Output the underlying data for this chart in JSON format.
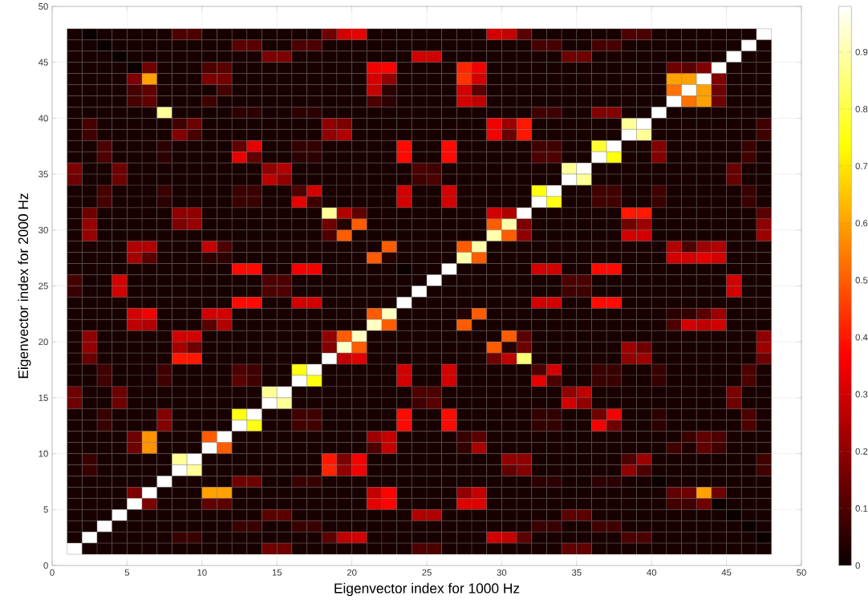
{
  "chart_data": {
    "type": "heatmap",
    "xlabel": "Eigenvector index for 1000 Hz",
    "ylabel": "Eigenvector index for 2000 Hz",
    "x": [
      1.5,
      2.5,
      3.5,
      4.5,
      5.5,
      6.5,
      7.5,
      8.5,
      9.5,
      10.5,
      11.5,
      12.5,
      13.5,
      14.5,
      15.5,
      16.5,
      17.5,
      18.5,
      19.5,
      20.5,
      21.5,
      22.5,
      23.5,
      24.5,
      25.5,
      26.5,
      27.5,
      28.5,
      29.5,
      30.5,
      31.5,
      32.5,
      33.5,
      34.5,
      35.5,
      36.5,
      37.5,
      38.5,
      39.5,
      40.5,
      41.5,
      42.5,
      43.5,
      44.5,
      45.5,
      46.5,
      47.5
    ],
    "y": [
      47.5,
      46.5,
      45.5,
      44.5,
      43.5,
      42.5,
      41.5,
      40.5,
      39.5,
      38.5,
      37.5,
      36.5,
      35.5,
      34.5,
      33.5,
      32.5,
      31.5,
      30.5,
      29.5,
      28.5,
      27.5,
      26.5,
      25.5,
      24.5,
      23.5,
      22.5,
      21.5,
      20.5,
      19.5,
      18.5,
      17.5,
      16.5,
      15.5,
      14.5,
      13.5,
      12.5,
      11.5,
      10.5,
      9.5,
      8.5,
      7.5,
      6.5,
      5.5,
      4.5,
      3.5,
      2.5,
      1.5
    ],
    "cells": [
      [
        0.02,
        0,
        0.02,
        0.02,
        0.02,
        0.02,
        0.02,
        0.1,
        0.1,
        0.02,
        0.02,
        0.02,
        0.02,
        0.02,
        0.02,
        0.02,
        0.02,
        0.15,
        0.3,
        0.33,
        0.02,
        0.02,
        0.02,
        0.02,
        0.02,
        0.02,
        0.02,
        0.02,
        0.3,
        0.28,
        0.12,
        0.02,
        0.02,
        0.02,
        0.02,
        0.02,
        0.02,
        0.1,
        0.1,
        0.02,
        0.02,
        0.02,
        0.02,
        0.02,
        0.02,
        0.02,
        0.98
      ],
      [
        0.02,
        0.02,
        0,
        0.02,
        0.02,
        0.02,
        0.02,
        0.02,
        0.02,
        0.02,
        0.02,
        0.12,
        0.12,
        0.02,
        0.02,
        0.1,
        0.1,
        0.02,
        0.02,
        0.02,
        0.02,
        0.02,
        0.02,
        0.02,
        0.02,
        0.02,
        0.02,
        0.02,
        0.02,
        0.02,
        0.02,
        0.09,
        0.09,
        0.02,
        0.02,
        0.09,
        0.09,
        0.02,
        0.02,
        0.02,
        0.02,
        0.02,
        0.02,
        0.02,
        0.02,
        0.98,
        0.02
      ],
      [
        0.02,
        0.02,
        0.02,
        0,
        0.02,
        0.02,
        0.02,
        0.02,
        0.02,
        0.02,
        0.02,
        0.02,
        0.02,
        0.17,
        0.17,
        0.02,
        0.02,
        0.02,
        0.02,
        0.02,
        0.02,
        0.02,
        0.02,
        0.3,
        0.3,
        0.02,
        0.02,
        0.02,
        0.02,
        0.02,
        0.02,
        0.02,
        0.02,
        0.15,
        0.15,
        0.02,
        0.02,
        0.02,
        0.02,
        0.02,
        0.02,
        0.02,
        0.02,
        0.02,
        0.98,
        0.02,
        0.02
      ],
      [
        0.02,
        0.02,
        0.02,
        0.02,
        0,
        0.15,
        0.02,
        0.02,
        0.02,
        0.1,
        0.12,
        0.02,
        0.02,
        0.02,
        0.02,
        0.02,
        0.02,
        0.02,
        0.02,
        0.02,
        0.35,
        0.37,
        0.02,
        0.02,
        0.02,
        0.02,
        0.42,
        0.35,
        0.02,
        0.02,
        0.02,
        0.02,
        0.02,
        0.02,
        0.02,
        0.02,
        0.02,
        0.02,
        0.02,
        0.02,
        0.15,
        0.12,
        0.18,
        0.98,
        0.02,
        0.02,
        0.02
      ],
      [
        0.02,
        0.02,
        0.02,
        0.02,
        0.17,
        0.6,
        0.02,
        0.02,
        0.02,
        0.17,
        0.16,
        0.02,
        0.02,
        0.02,
        0.02,
        0.02,
        0.02,
        0.02,
        0.02,
        0.02,
        0.3,
        0.2,
        0.02,
        0.02,
        0.02,
        0.02,
        0.44,
        0.3,
        0.02,
        0.02,
        0.02,
        0.02,
        0.02,
        0.02,
        0.02,
        0.02,
        0.02,
        0.02,
        0.02,
        0.02,
        0.6,
        0.6,
        0.98,
        0.18,
        0.02,
        0.02,
        0.02
      ],
      [
        0.02,
        0.02,
        0.02,
        0.02,
        0.09,
        0.13,
        0.02,
        0.02,
        0.02,
        0.02,
        0.09,
        0.02,
        0.02,
        0.02,
        0.02,
        0.02,
        0.02,
        0.02,
        0.02,
        0.02,
        0.28,
        0.05,
        0.02,
        0.02,
        0.02,
        0.02,
        0.3,
        0.12,
        0.02,
        0.02,
        0.02,
        0.02,
        0.02,
        0.02,
        0.02,
        0.02,
        0.02,
        0.02,
        0.02,
        0.02,
        0.53,
        0.98,
        0.6,
        0.15,
        0.02,
        0.02,
        0.02
      ],
      [
        0.02,
        0.02,
        0.02,
        0.02,
        0.09,
        0.13,
        0.02,
        0.02,
        0.02,
        0.08,
        0.02,
        0.02,
        0.02,
        0.02,
        0.02,
        0.02,
        0.02,
        0.02,
        0.02,
        0.02,
        0.1,
        0.05,
        0.02,
        0.02,
        0.02,
        0.02,
        0.3,
        0.27,
        0.02,
        0.02,
        0.02,
        0.02,
        0.02,
        0.02,
        0.02,
        0.02,
        0.02,
        0.02,
        0.02,
        0.02,
        0.98,
        0.53,
        0.6,
        0.15,
        0.02,
        0.02,
        0.02
      ],
      [
        0.02,
        0.02,
        0.02,
        0.02,
        0.02,
        0.02,
        0.88,
        0.02,
        0.02,
        0.02,
        0.02,
        0.05,
        0.05,
        0.02,
        0.02,
        0.05,
        0.05,
        0.02,
        0.02,
        0.02,
        0.02,
        0.02,
        0.02,
        0.02,
        0.02,
        0.02,
        0.02,
        0.02,
        0.02,
        0.02,
        0.02,
        0.08,
        0.08,
        0.02,
        0.02,
        0.18,
        0.18,
        0.02,
        0.02,
        0.98,
        0.02,
        0.02,
        0.02,
        0.02,
        0.02,
        0.02,
        0.02
      ],
      [
        0.02,
        0.09,
        0.02,
        0.02,
        0.02,
        0.02,
        0.02,
        0.08,
        0.15,
        0.02,
        0.02,
        0.02,
        0.02,
        0.02,
        0.02,
        0.02,
        0.02,
        0.2,
        0.17,
        0.02,
        0.02,
        0.02,
        0.02,
        0.02,
        0.02,
        0.02,
        0.02,
        0.02,
        0.35,
        0.22,
        0.4,
        0.02,
        0.02,
        0.02,
        0.02,
        0.02,
        0.02,
        0.88,
        0.98,
        0.02,
        0.02,
        0.02,
        0.02,
        0.02,
        0.02,
        0.02,
        0.08
      ],
      [
        0.02,
        0.08,
        0.02,
        0.02,
        0.02,
        0.02,
        0.02,
        0.18,
        0.09,
        0.02,
        0.02,
        0.02,
        0.02,
        0.02,
        0.02,
        0.02,
        0.02,
        0.2,
        0.25,
        0.02,
        0.02,
        0.02,
        0.02,
        0.02,
        0.02,
        0.02,
        0.02,
        0.02,
        0.35,
        0.14,
        0.4,
        0.02,
        0.02,
        0.02,
        0.02,
        0.02,
        0.02,
        0.98,
        0.88,
        0.02,
        0.02,
        0.02,
        0.02,
        0.02,
        0.02,
        0.02,
        0.08
      ],
      [
        0.02,
        0.02,
        0.1,
        0.02,
        0.02,
        0.02,
        0.05,
        0.02,
        0.02,
        0.02,
        0.02,
        0.13,
        0.33,
        0.02,
        0.02,
        0.06,
        0.06,
        0.02,
        0.02,
        0.02,
        0.02,
        0.02,
        0.38,
        0.02,
        0.02,
        0.38,
        0.02,
        0.02,
        0.02,
        0.02,
        0.02,
        0.08,
        0.08,
        0.02,
        0.02,
        0.78,
        0.98,
        0.02,
        0.02,
        0.18,
        0.02,
        0.02,
        0.02,
        0.02,
        0.02,
        0.07,
        0.02
      ],
      [
        0.02,
        0.02,
        0.1,
        0.02,
        0.02,
        0.02,
        0.05,
        0.02,
        0.02,
        0.02,
        0.02,
        0.33,
        0.13,
        0.02,
        0.02,
        0.05,
        0.05,
        0.02,
        0.02,
        0.02,
        0.02,
        0.02,
        0.38,
        0.02,
        0.02,
        0.38,
        0.02,
        0.02,
        0.02,
        0.02,
        0.02,
        0.1,
        0.1,
        0.02,
        0.02,
        0.98,
        0.75,
        0.02,
        0.02,
        0.18,
        0.02,
        0.02,
        0.02,
        0.02,
        0.02,
        0.08,
        0.02
      ],
      [
        0.17,
        0.02,
        0.02,
        0.15,
        0.02,
        0.02,
        0.02,
        0.02,
        0.02,
        0.02,
        0.02,
        0.02,
        0.02,
        0.2,
        0.25,
        0.02,
        0.02,
        0.02,
        0.02,
        0.02,
        0.02,
        0.02,
        0.02,
        0.1,
        0.08,
        0.02,
        0.02,
        0.02,
        0.02,
        0.02,
        0.02,
        0.02,
        0.02,
        0.88,
        0.98,
        0.02,
        0.02,
        0.02,
        0.02,
        0.02,
        0.02,
        0.02,
        0.02,
        0.02,
        0.14,
        0.02,
        0.02
      ],
      [
        0.15,
        0.02,
        0.02,
        0.15,
        0.02,
        0.02,
        0.02,
        0.02,
        0.02,
        0.02,
        0.02,
        0.02,
        0.02,
        0.27,
        0.2,
        0.02,
        0.02,
        0.02,
        0.02,
        0.02,
        0.02,
        0.02,
        0.02,
        0.08,
        0.1,
        0.02,
        0.02,
        0.02,
        0.02,
        0.02,
        0.02,
        0.02,
        0.02,
        0.98,
        0.88,
        0.02,
        0.02,
        0.02,
        0.02,
        0.02,
        0.02,
        0.02,
        0.02,
        0.02,
        0.14,
        0.02,
        0.02
      ],
      [
        0.02,
        0.02,
        0.09,
        0.02,
        0.02,
        0.02,
        0.07,
        0.02,
        0.02,
        0.02,
        0.02,
        0.07,
        0.07,
        0.02,
        0.02,
        0.1,
        0.3,
        0.02,
        0.02,
        0.02,
        0.02,
        0.02,
        0.3,
        0.02,
        0.02,
        0.3,
        0.02,
        0.02,
        0.02,
        0.02,
        0.02,
        0.75,
        0.98,
        0.02,
        0.02,
        0.08,
        0.08,
        0.02,
        0.02,
        0.08,
        0.02,
        0.02,
        0.02,
        0.02,
        0.02,
        0.07,
        0.02
      ],
      [
        0.02,
        0.02,
        0.09,
        0.02,
        0.02,
        0.02,
        0.05,
        0.02,
        0.02,
        0.02,
        0.02,
        0.07,
        0.07,
        0.02,
        0.02,
        0.33,
        0.08,
        0.02,
        0.02,
        0.02,
        0.02,
        0.02,
        0.3,
        0.02,
        0.02,
        0.3,
        0.02,
        0.02,
        0.02,
        0.02,
        0.02,
        0.98,
        0.75,
        0.02,
        0.02,
        0.08,
        0.08,
        0.02,
        0.02,
        0.07,
        0.02,
        0.02,
        0.02,
        0.02,
        0.02,
        0.07,
        0.02
      ],
      [
        0.02,
        0.15,
        0.02,
        0.02,
        0.02,
        0.02,
        0.02,
        0.2,
        0.2,
        0.02,
        0.02,
        0.02,
        0.02,
        0.02,
        0.02,
        0.02,
        0.02,
        0.88,
        0.25,
        0.13,
        0.02,
        0.02,
        0.02,
        0.02,
        0.02,
        0.02,
        0.02,
        0.02,
        0.3,
        0.25,
        0.98,
        0.02,
        0.02,
        0.02,
        0.02,
        0.02,
        0.02,
        0.4,
        0.4,
        0.02,
        0.02,
        0.02,
        0.02,
        0.02,
        0.02,
        0.02,
        0.12
      ],
      [
        0.02,
        0.21,
        0.02,
        0.02,
        0.02,
        0.02,
        0.02,
        0.17,
        0.21,
        0.02,
        0.02,
        0.02,
        0.02,
        0.02,
        0.02,
        0.02,
        0.02,
        0.15,
        0.04,
        0.5,
        0.02,
        0.02,
        0.02,
        0.02,
        0.02,
        0.02,
        0.02,
        0.02,
        0.5,
        0.9,
        0.17,
        0.02,
        0.02,
        0.02,
        0.02,
        0.02,
        0.02,
        0.15,
        0.22,
        0.02,
        0.02,
        0.02,
        0.02,
        0.02,
        0.02,
        0.02,
        0.2
      ],
      [
        0.02,
        0.21,
        0.02,
        0.02,
        0.02,
        0.02,
        0.02,
        0.02,
        0.02,
        0.02,
        0.02,
        0.02,
        0.02,
        0.02,
        0.02,
        0.02,
        0.02,
        0.1,
        0.5,
        0.02,
        0.02,
        0.02,
        0.02,
        0.02,
        0.02,
        0.02,
        0.02,
        0.02,
        0.9,
        0.5,
        0.2,
        0.02,
        0.02,
        0.02,
        0.02,
        0.02,
        0.02,
        0.3,
        0.3,
        0.02,
        0.02,
        0.02,
        0.02,
        0.02,
        0.02,
        0.02,
        0.22
      ],
      [
        0.02,
        0.02,
        0.02,
        0.02,
        0.25,
        0.25,
        0.02,
        0.02,
        0.02,
        0.28,
        0.1,
        0.02,
        0.02,
        0.02,
        0.02,
        0.02,
        0.02,
        0.02,
        0.02,
        0.02,
        0.02,
        0.5,
        0.02,
        0.02,
        0.02,
        0.02,
        0.5,
        0.9,
        0.02,
        0.02,
        0.02,
        0.02,
        0.02,
        0.02,
        0.02,
        0.02,
        0.02,
        0.02,
        0.02,
        0.02,
        0.25,
        0.1,
        0.22,
        0.25,
        0.02,
        0.02,
        0.02
      ],
      [
        0.02,
        0.02,
        0.02,
        0.02,
        0.23,
        0.12,
        0.02,
        0.02,
        0.02,
        0.05,
        0.05,
        0.02,
        0.02,
        0.02,
        0.02,
        0.02,
        0.02,
        0.02,
        0.02,
        0.02,
        0.5,
        0.04,
        0.02,
        0.02,
        0.02,
        0.02,
        0.9,
        0.5,
        0.02,
        0.02,
        0.02,
        0.02,
        0.02,
        0.02,
        0.02,
        0.02,
        0.02,
        0.02,
        0.02,
        0.02,
        0.3,
        0.3,
        0.33,
        0.3,
        0.02,
        0.02,
        0.02
      ],
      [
        0.02,
        0.02,
        0.02,
        0.02,
        0.02,
        0.02,
        0.02,
        0.02,
        0.02,
        0.02,
        0.02,
        0.38,
        0.38,
        0.02,
        0.02,
        0.35,
        0.35,
        0.02,
        0.02,
        0.02,
        0.02,
        0.02,
        0,
        0.02,
        0.02,
        0.98,
        0.02,
        0.02,
        0.02,
        0.02,
        0.02,
        0.3,
        0.3,
        0.02,
        0.02,
        0.38,
        0.38,
        0.02,
        0.02,
        0.02,
        0.02,
        0.02,
        0.02,
        0.02,
        0.02,
        0.02,
        0.02
      ],
      [
        0.09,
        0.02,
        0.02,
        0.3,
        0.02,
        0.02,
        0.02,
        0.02,
        0.02,
        0.02,
        0.02,
        0.02,
        0.02,
        0.1,
        0.1,
        0.02,
        0.02,
        0.02,
        0.02,
        0.02,
        0.02,
        0.02,
        0.02,
        0.02,
        0.98,
        0.02,
        0.02,
        0.02,
        0.02,
        0.02,
        0.02,
        0.02,
        0.02,
        0.1,
        0.1,
        0.02,
        0.02,
        0.02,
        0.02,
        0.02,
        0.02,
        0.02,
        0.02,
        0.02,
        0.3,
        0.02,
        0.02
      ],
      [
        0.07,
        0.02,
        0.02,
        0.3,
        0.02,
        0.02,
        0.02,
        0.02,
        0.02,
        0.02,
        0.02,
        0.02,
        0.02,
        0.1,
        0.1,
        0.02,
        0.02,
        0.02,
        0.02,
        0.02,
        0.02,
        0.02,
        0.02,
        0.98,
        0.02,
        0.02,
        0.02,
        0.02,
        0.02,
        0.02,
        0.02,
        0.02,
        0.02,
        0.08,
        0.08,
        0.02,
        0.02,
        0.02,
        0.02,
        0.02,
        0.02,
        0.02,
        0.02,
        0.02,
        0.3,
        0.02,
        0.02
      ],
      [
        0.02,
        0.02,
        0.02,
        0.02,
        0.02,
        0.02,
        0.02,
        0.02,
        0.02,
        0.02,
        0.02,
        0.38,
        0.38,
        0.02,
        0.02,
        0.3,
        0.3,
        0.02,
        0.02,
        0.02,
        0.02,
        0.02,
        0.98,
        0.02,
        0.02,
        0.02,
        0.02,
        0.02,
        0.02,
        0.02,
        0.02,
        0.3,
        0.3,
        0.02,
        0.02,
        0.38,
        0.38,
        0.02,
        0.02,
        0.02,
        0.02,
        0.02,
        0.02,
        0.02,
        0.02,
        0.02,
        0.02
      ],
      [
        0.02,
        0.02,
        0.02,
        0.02,
        0.3,
        0.35,
        0.02,
        0.02,
        0.02,
        0.3,
        0.3,
        0.02,
        0.02,
        0.02,
        0.02,
        0.02,
        0.02,
        0.02,
        0.02,
        0.02,
        0.5,
        0.92,
        0.02,
        0.02,
        0.02,
        0.02,
        0.04,
        0.5,
        0.02,
        0.02,
        0.02,
        0.02,
        0.02,
        0.02,
        0.02,
        0.02,
        0.02,
        0.02,
        0.02,
        0.02,
        0.05,
        0.06,
        0.12,
        0.22,
        0.02,
        0.02,
        0.02
      ],
      [
        0.02,
        0.02,
        0.02,
        0.02,
        0.27,
        0.25,
        0.02,
        0.02,
        0.02,
        0.12,
        0.25,
        0.02,
        0.02,
        0.02,
        0.02,
        0.02,
        0.02,
        0.02,
        0.02,
        0.02,
        0.92,
        0.5,
        0.02,
        0.02,
        0.02,
        0.02,
        0.5,
        0.02,
        0.02,
        0.02,
        0.02,
        0.02,
        0.02,
        0.02,
        0.02,
        0.02,
        0.02,
        0.02,
        0.02,
        0.02,
        0.1,
        0.3,
        0.27,
        0.3,
        0.02,
        0.02,
        0.02
      ],
      [
        0.02,
        0.2,
        0.02,
        0.02,
        0.02,
        0.02,
        0.02,
        0.3,
        0.3,
        0.02,
        0.02,
        0.02,
        0.02,
        0.02,
        0.02,
        0.02,
        0.02,
        0.2,
        0.5,
        0.92,
        0.02,
        0.02,
        0.02,
        0.02,
        0.02,
        0.02,
        0.02,
        0.02,
        0.02,
        0.5,
        0.12,
        0.02,
        0.02,
        0.02,
        0.02,
        0.02,
        0.02,
        0.02,
        0.02,
        0.02,
        0.02,
        0.02,
        0.02,
        0.02,
        0.02,
        0.02,
        0.2
      ],
      [
        0.02,
        0.2,
        0.02,
        0.02,
        0.02,
        0.02,
        0.02,
        0.23,
        0.15,
        0.02,
        0.02,
        0.02,
        0.02,
        0.02,
        0.02,
        0.02,
        0.02,
        0.18,
        0.93,
        0.5,
        0.02,
        0.02,
        0.02,
        0.02,
        0.02,
        0.02,
        0.02,
        0.02,
        0.5,
        0.04,
        0.15,
        0.02,
        0.02,
        0.02,
        0.02,
        0.02,
        0.02,
        0.22,
        0.15,
        0.02,
        0.02,
        0.02,
        0.02,
        0.02,
        0.02,
        0.02,
        0.22
      ],
      [
        0.02,
        0.14,
        0.02,
        0.02,
        0.02,
        0.02,
        0.02,
        0.4,
        0.4,
        0.02,
        0.02,
        0.02,
        0.02,
        0.02,
        0.02,
        0.02,
        0.02,
        0.98,
        0.27,
        0.32,
        0.02,
        0.02,
        0.02,
        0.02,
        0.02,
        0.02,
        0.02,
        0.02,
        0.15,
        0.27,
        0.85,
        0.02,
        0.02,
        0.02,
        0.02,
        0.02,
        0.02,
        0.2,
        0.22,
        0.02,
        0.02,
        0.02,
        0.02,
        0.02,
        0.02,
        0.02,
        0.15
      ],
      [
        0.02,
        0.02,
        0.08,
        0.02,
        0.02,
        0.02,
        0.08,
        0.02,
        0.02,
        0.02,
        0.02,
        0.1,
        0.08,
        0.02,
        0.02,
        0.75,
        0.98,
        0.02,
        0.02,
        0.02,
        0.02,
        0.02,
        0.3,
        0.02,
        0.02,
        0.3,
        0.02,
        0.02,
        0.02,
        0.02,
        0.02,
        0.1,
        0.3,
        0.02,
        0.02,
        0.07,
        0.07,
        0.02,
        0.02,
        0.07,
        0.02,
        0.02,
        0.02,
        0.02,
        0.02,
        0.1,
        0.02
      ],
      [
        0.02,
        0.02,
        0.08,
        0.02,
        0.02,
        0.02,
        0.08,
        0.02,
        0.02,
        0.02,
        0.02,
        0.12,
        0.08,
        0.02,
        0.02,
        0.98,
        0.75,
        0.02,
        0.02,
        0.02,
        0.02,
        0.02,
        0.3,
        0.02,
        0.02,
        0.3,
        0.02,
        0.02,
        0.02,
        0.02,
        0.02,
        0.33,
        0.1,
        0.02,
        0.02,
        0.07,
        0.07,
        0.02,
        0.02,
        0.06,
        0.02,
        0.02,
        0.02,
        0.02,
        0.02,
        0.1,
        0.02
      ],
      [
        0.15,
        0.02,
        0.02,
        0.15,
        0.02,
        0.02,
        0.02,
        0.02,
        0.02,
        0.02,
        0.02,
        0.02,
        0.02,
        0.88,
        0.98,
        0.02,
        0.02,
        0.02,
        0.02,
        0.02,
        0.02,
        0.02,
        0.02,
        0.1,
        0.1,
        0.02,
        0.02,
        0.02,
        0.02,
        0.02,
        0.02,
        0.02,
        0.02,
        0.2,
        0.27,
        0.02,
        0.02,
        0.02,
        0.02,
        0.02,
        0.02,
        0.02,
        0.02,
        0.02,
        0.17,
        0.02,
        0.02
      ],
      [
        0.15,
        0.02,
        0.02,
        0.15,
        0.02,
        0.02,
        0.02,
        0.02,
        0.02,
        0.02,
        0.02,
        0.02,
        0.02,
        0.98,
        0.88,
        0.02,
        0.02,
        0.02,
        0.02,
        0.02,
        0.02,
        0.02,
        0.02,
        0.08,
        0.12,
        0.02,
        0.02,
        0.02,
        0.02,
        0.02,
        0.02,
        0.02,
        0.02,
        0.3,
        0.2,
        0.02,
        0.02,
        0.02,
        0.02,
        0.02,
        0.02,
        0.02,
        0.02,
        0.02,
        0.15,
        0.02,
        0.02
      ],
      [
        0.02,
        0.02,
        0.07,
        0.02,
        0.02,
        0.02,
        0.18,
        0.02,
        0.02,
        0.02,
        0.02,
        0.75,
        0.98,
        0.02,
        0.02,
        0.08,
        0.08,
        0.02,
        0.02,
        0.02,
        0.02,
        0.02,
        0.38,
        0.02,
        0.02,
        0.38,
        0.02,
        0.02,
        0.02,
        0.02,
        0.02,
        0.06,
        0.06,
        0.02,
        0.02,
        0.15,
        0.35,
        0.02,
        0.02,
        0.05,
        0.02,
        0.02,
        0.02,
        0.02,
        0.02,
        0.1,
        0.02
      ],
      [
        0.02,
        0.02,
        0.07,
        0.02,
        0.02,
        0.02,
        0.18,
        0.02,
        0.02,
        0.02,
        0.02,
        0.98,
        0.75,
        0.02,
        0.02,
        0.08,
        0.08,
        0.02,
        0.02,
        0.02,
        0.02,
        0.02,
        0.38,
        0.02,
        0.02,
        0.38,
        0.02,
        0.02,
        0.02,
        0.02,
        0.02,
        0.06,
        0.06,
        0.02,
        0.02,
        0.35,
        0.15,
        0.02,
        0.02,
        0.05,
        0.02,
        0.02,
        0.02,
        0.02,
        0.02,
        0.1,
        0.02
      ],
      [
        0.02,
        0.02,
        0.02,
        0.02,
        0.15,
        0.58,
        0.02,
        0.02,
        0.02,
        0.5,
        0.98,
        0.02,
        0.02,
        0.02,
        0.02,
        0.02,
        0.02,
        0.02,
        0.02,
        0.02,
        0.22,
        0.28,
        0.02,
        0.02,
        0.02,
        0.02,
        0.07,
        0.12,
        0.02,
        0.02,
        0.02,
        0.02,
        0.02,
        0.02,
        0.02,
        0.02,
        0.02,
        0.02,
        0.02,
        0.02,
        0.02,
        0.07,
        0.13,
        0.1,
        0.02,
        0.02,
        0.02
      ],
      [
        0.02,
        0.02,
        0.02,
        0.02,
        0.15,
        0.58,
        0.02,
        0.02,
        0.02,
        0.98,
        0.5,
        0.02,
        0.02,
        0.02,
        0.02,
        0.02,
        0.02,
        0.02,
        0.02,
        0.02,
        0.1,
        0.28,
        0.02,
        0.02,
        0.02,
        0.02,
        0.06,
        0.24,
        0.02,
        0.02,
        0.02,
        0.02,
        0.02,
        0.02,
        0.02,
        0.02,
        0.02,
        0.02,
        0.02,
        0.02,
        0.08,
        0.03,
        0.13,
        0.08,
        0.02,
        0.02,
        0.02
      ],
      [
        0.02,
        0.07,
        0.02,
        0.02,
        0.02,
        0.02,
        0.02,
        0.88,
        0.98,
        0.02,
        0.02,
        0.02,
        0.02,
        0.02,
        0.02,
        0.02,
        0.02,
        0.4,
        0.17,
        0.35,
        0.02,
        0.02,
        0.02,
        0.02,
        0.02,
        0.02,
        0.02,
        0.02,
        0.02,
        0.2,
        0.2,
        0.02,
        0.02,
        0.02,
        0.02,
        0.02,
        0.02,
        0.1,
        0.22,
        0.02,
        0.02,
        0.02,
        0.02,
        0.02,
        0.02,
        0.02,
        0.08
      ],
      [
        0.02,
        0.07,
        0.02,
        0.02,
        0.02,
        0.02,
        0.02,
        0.98,
        0.88,
        0.02,
        0.02,
        0.02,
        0.02,
        0.02,
        0.02,
        0.02,
        0.02,
        0.42,
        0.2,
        0.35,
        0.02,
        0.02,
        0.02,
        0.02,
        0.02,
        0.02,
        0.02,
        0.02,
        0.02,
        0.13,
        0.18,
        0.02,
        0.02,
        0.02,
        0.02,
        0.02,
        0.02,
        0.2,
        0.1,
        0.02,
        0.02,
        0.02,
        0.02,
        0.02,
        0.02,
        0.02,
        0.08
      ],
      [
        0.02,
        0.02,
        0.02,
        0.02,
        0.02,
        0.02,
        0.98,
        0.02,
        0.02,
        0.02,
        0.02,
        0.15,
        0.15,
        0.02,
        0.02,
        0.07,
        0.07,
        0.02,
        0.02,
        0.02,
        0.02,
        0.02,
        0.02,
        0.02,
        0.02,
        0.02,
        0.02,
        0.02,
        0.02,
        0.02,
        0.02,
        0.05,
        0.05,
        0.02,
        0.02,
        0.05,
        0.05,
        0.02,
        0.02,
        0,
        0.02,
        0.02,
        0.02,
        0.02,
        0.02,
        0.02,
        0.02
      ],
      [
        0.02,
        0.02,
        0.02,
        0.02,
        0.17,
        0.98,
        0.02,
        0.02,
        0.02,
        0.6,
        0.6,
        0.02,
        0.02,
        0.02,
        0.02,
        0.02,
        0.02,
        0.02,
        0.02,
        0.02,
        0.28,
        0.37,
        0.02,
        0.02,
        0.02,
        0.02,
        0.2,
        0.28,
        0.02,
        0.02,
        0.02,
        0.02,
        0.02,
        0.02,
        0.02,
        0.02,
        0.02,
        0.02,
        0.02,
        0.02,
        0.13,
        0.15,
        0.6,
        0.15,
        0.02,
        0.02,
        0.02
      ],
      [
        0.02,
        0.02,
        0.02,
        0.02,
        0.98,
        0.17,
        0.02,
        0.02,
        0.02,
        0.13,
        0.12,
        0.02,
        0.02,
        0.02,
        0.02,
        0.02,
        0.02,
        0.02,
        0.02,
        0.02,
        0.33,
        0.37,
        0.02,
        0.02,
        0.02,
        0.02,
        0.32,
        0.32,
        0.02,
        0.02,
        0.02,
        0.02,
        0.02,
        0.02,
        0.02,
        0.02,
        0.02,
        0.02,
        0.02,
        0.02,
        0.08,
        0.08,
        0.15,
        0,
        0.02,
        0.02,
        0.02
      ],
      [
        0.02,
        0.02,
        0.02,
        0.98,
        0.02,
        0.02,
        0.02,
        0.02,
        0.02,
        0.02,
        0.02,
        0.02,
        0.02,
        0.12,
        0.12,
        0.02,
        0.02,
        0.02,
        0.02,
        0.02,
        0.02,
        0.02,
        0.02,
        0.25,
        0.25,
        0.02,
        0.02,
        0.02,
        0.02,
        0.02,
        0.02,
        0.02,
        0.02,
        0.12,
        0.12,
        0.02,
        0.02,
        0.02,
        0.02,
        0.02,
        0.02,
        0.02,
        0.02,
        0.02,
        0,
        0.02,
        0.02
      ],
      [
        0.02,
        0.02,
        0.98,
        0.02,
        0.02,
        0.02,
        0.02,
        0.02,
        0.02,
        0.02,
        0.02,
        0.07,
        0.07,
        0.02,
        0.02,
        0.07,
        0.07,
        0.02,
        0.02,
        0.02,
        0.02,
        0.02,
        0.02,
        0.02,
        0.02,
        0.02,
        0.02,
        0.02,
        0.02,
        0.02,
        0.02,
        0.07,
        0.07,
        0.02,
        0.02,
        0.08,
        0.08,
        0.02,
        0.02,
        0.02,
        0.02,
        0.02,
        0.02,
        0.02,
        0.02,
        0,
        0.02
      ],
      [
        0.02,
        0.98,
        0.02,
        0.02,
        0.02,
        0.02,
        0.02,
        0.07,
        0.07,
        0.02,
        0.02,
        0.02,
        0.02,
        0.02,
        0.02,
        0.02,
        0.02,
        0.12,
        0.27,
        0.3,
        0.02,
        0.02,
        0.02,
        0.02,
        0.02,
        0.02,
        0.02,
        0.02,
        0.3,
        0.28,
        0.12,
        0.02,
        0.02,
        0.02,
        0.02,
        0.02,
        0.02,
        0.1,
        0.1,
        0.02,
        0.02,
        0.02,
        0.02,
        0.02,
        0.02,
        0.02,
        0
      ],
      [
        0.98,
        0.02,
        0.02,
        0.02,
        0.02,
        0.02,
        0.02,
        0.02,
        0.02,
        0.02,
        0.02,
        0.02,
        0.02,
        0.15,
        0.15,
        0.02,
        0.02,
        0.02,
        0.02,
        0.02,
        0.02,
        0.02,
        0.02,
        0.1,
        0.1,
        0.02,
        0.02,
        0.02,
        0.02,
        0.02,
        0.02,
        0.02,
        0.02,
        0.13,
        0.13,
        0.02,
        0.02,
        0.02,
        0.02,
        0.02,
        0.02,
        0.02,
        0.02,
        0.02,
        0.02,
        0.02,
        0.02
      ]
    ],
    "clim": [
      0,
      0.98
    ],
    "cticks": [
      0,
      0.1,
      0.2,
      0.3,
      0.4,
      0.5,
      0.6,
      0.7,
      0.8,
      0.9
    ],
    "xlim": [
      0,
      50
    ],
    "ylim": [
      0,
      50
    ],
    "xticks": [
      0,
      5,
      10,
      15,
      20,
      25,
      30,
      35,
      40,
      45,
      50
    ],
    "yticks": [
      0,
      5,
      10,
      15,
      20,
      25,
      30,
      35,
      40,
      45,
      50
    ],
    "grid": true
  }
}
